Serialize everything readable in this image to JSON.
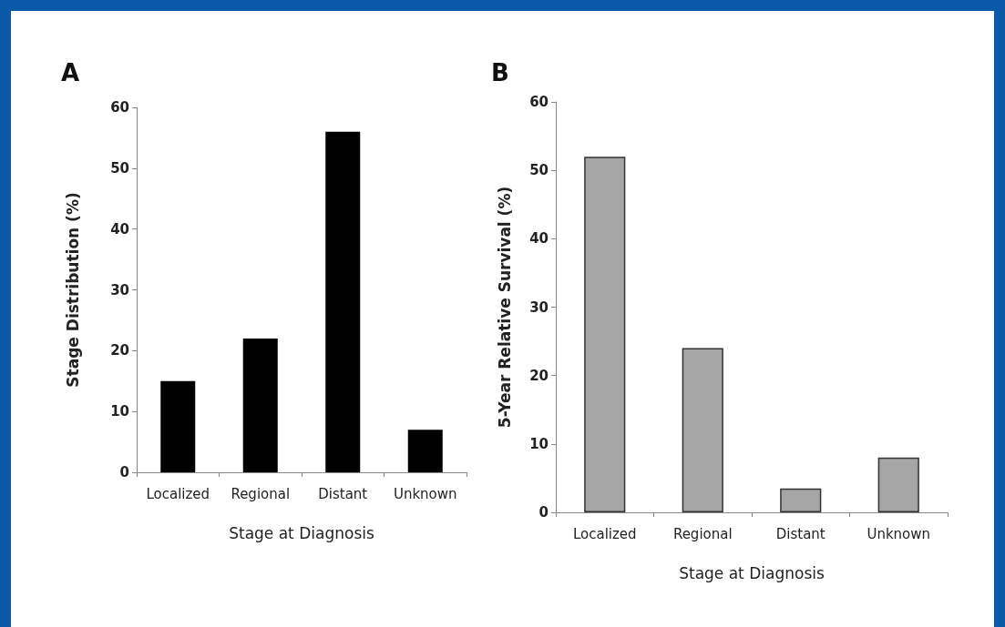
{
  "chart_data": [
    {
      "type": "bar",
      "title": "A",
      "xlabel": "Stage at Diagnosis",
      "ylabel": "Stage Distribution (%)",
      "categories": [
        "Localized",
        "Regional",
        "Distant",
        "Unknown"
      ],
      "values": [
        15,
        22,
        56,
        7
      ],
      "color": "#000000",
      "ylim": [
        0,
        60
      ],
      "yticks": [
        0,
        10,
        20,
        30,
        40,
        50,
        60
      ],
      "grid": false
    },
    {
      "type": "bar",
      "title": "B",
      "xlabel": "Stage at Diagnosis",
      "ylabel": "5-Year Relative Survival (%)",
      "categories": [
        "Localized",
        "Regional",
        "Distant",
        "Unknown"
      ],
      "values": [
        52,
        24,
        3.5,
        8
      ],
      "color": "#a6a6a6",
      "ylim": [
        0,
        60
      ],
      "yticks": [
        0,
        10,
        20,
        30,
        40,
        50,
        60
      ],
      "grid": false
    }
  ]
}
